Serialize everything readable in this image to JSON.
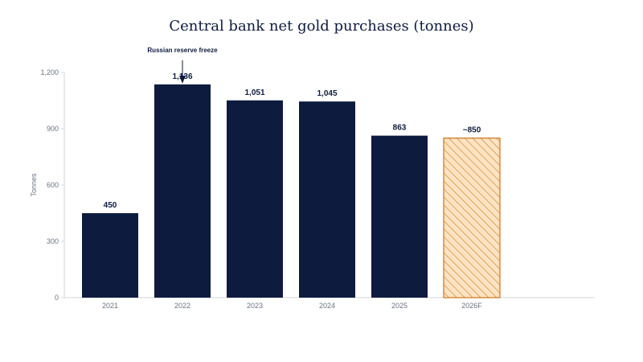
{
  "chart_data": {
    "type": "bar",
    "title": "Central bank net gold purchases (tonnes)",
    "ylabel": "Tonnes",
    "xlabel": "",
    "ylim": [
      0,
      1200
    ],
    "yticks": [
      0,
      300,
      600,
      900,
      1200
    ],
    "ytick_labels": [
      "0",
      "300",
      "600",
      "900",
      "1,200"
    ],
    "grid": false,
    "categories": [
      "2021",
      "2022",
      "2023",
      "2024",
      "2025",
      "2026F"
    ],
    "values": [
      450,
      1136,
      1051,
      1045,
      863,
      850
    ],
    "data_labels": [
      "450",
      "1,136",
      "1,051",
      "1,045",
      "863",
      "~850"
    ],
    "forecast_index": 5,
    "colors": {
      "actual": "#0d1b3e",
      "forecast_fill": "#fde3c2",
      "forecast_hatch": "#cc7a1e",
      "forecast_stroke": "#c7741a",
      "axis": "#d1d5db",
      "text_muted": "#6b7280"
    },
    "annotation": {
      "text": "Russian reserve freeze",
      "category": "2022"
    }
  }
}
